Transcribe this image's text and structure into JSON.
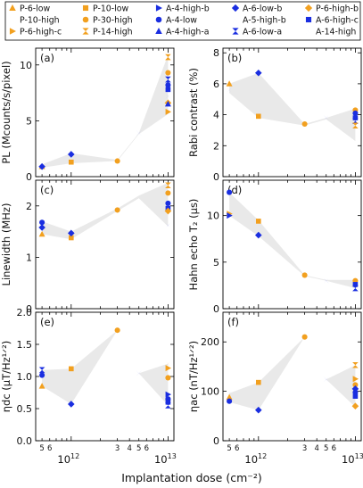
{
  "legend": [
    {
      "label": "P-6-low",
      "color": "#f2a01f",
      "marker": "tri-up"
    },
    {
      "label": "P-10-low",
      "color": "#f2a01f",
      "marker": "square"
    },
    {
      "label": "A-4-high-b",
      "color": "#1a2ee0",
      "marker": "tri-right"
    },
    {
      "label": "A-6-low-b",
      "color": "#1a2ee0",
      "marker": "diamond"
    },
    {
      "label": "P-6-high-b",
      "color": "#f2a01f",
      "marker": "diamond"
    },
    {
      "label": "P-10-high",
      "color": "#f2a01f",
      "marker": "bowtie"
    },
    {
      "label": "P-30-high",
      "color": "#f2a01f",
      "marker": "circle"
    },
    {
      "label": "A-4-low",
      "color": "#1a2ee0",
      "marker": "circle"
    },
    {
      "label": "A-5-high-b",
      "color": "#1a2ee0",
      "marker": "bowtie"
    },
    {
      "label": "A-6-high-c",
      "color": "#1a2ee0",
      "marker": "square"
    },
    {
      "label": "P-6-high-c",
      "color": "#f2a01f",
      "marker": "tri-right"
    },
    {
      "label": "P-14-high",
      "color": "#f2a01f",
      "marker": "hourglass"
    },
    {
      "label": "A-4-high-a",
      "color": "#1a2ee0",
      "marker": "tri-up"
    },
    {
      "label": "A-6-low-a",
      "color": "#1a2ee0",
      "marker": "hourglass"
    },
    {
      "label": "A-14-high",
      "color": "#1a2ee0",
      "marker": "bowtie"
    }
  ],
  "xlabel": "Implantation dose (cm⁻²)",
  "chart_data": [
    {
      "type": "scatter",
      "panel": "(a)",
      "ylabel": "PL (Mcounts/s/pixel)",
      "xscale": "log",
      "xlim": [
        430000000000.0,
        11500000000000.0
      ],
      "ylim": [
        0,
        11.5
      ],
      "yticks": [
        0,
        5,
        10
      ],
      "band": {
        "x": [
          500000000000.0,
          1000000000000.0,
          3000000000000.0,
          5000000000000.0,
          10000000000000.0
        ],
        "lower": [
          0.8,
          1.2,
          1.4,
          3.8,
          5.6
        ],
        "upper": [
          1.1,
          2.1,
          1.5,
          3.9,
          10.9
        ]
      },
      "points": [
        {
          "series": "P-6-low",
          "x": 500000000000.0,
          "y": 0.9
        },
        {
          "series": "A-6-low-b",
          "x": 500000000000.0,
          "y": 0.9
        },
        {
          "series": "P-10-low",
          "x": 1000000000000.0,
          "y": 1.3
        },
        {
          "series": "A-6-low-b",
          "x": 1000000000000.0,
          "y": 2.0
        },
        {
          "series": "P-30-high",
          "x": 3000000000000.0,
          "y": 1.4
        },
        {
          "series": "A-5-high-b",
          "x": 5000000000000.0,
          "y": 3.9
        },
        {
          "series": "P-14-high",
          "x": 10000000000000.0,
          "y": 10.7
        },
        {
          "series": "P-30-high",
          "x": 10000000000000.0,
          "y": 9.3
        },
        {
          "series": "A-6-low-a",
          "x": 10000000000000.0,
          "y": 8.7
        },
        {
          "series": "A-4-low",
          "x": 10000000000000.0,
          "y": 8.2
        },
        {
          "series": "A-6-high-c",
          "x": 10000000000000.0,
          "y": 7.8
        },
        {
          "series": "A-14-high",
          "x": 10000000000000.0,
          "y": 7.2
        },
        {
          "series": "P-6-high-b",
          "x": 10000000000000.0,
          "y": 6.6
        },
        {
          "series": "A-4-high-a",
          "x": 10000000000000.0,
          "y": 6.5
        },
        {
          "series": "P-6-high-c",
          "x": 10000000000000.0,
          "y": 5.8
        }
      ]
    },
    {
      "type": "scatter",
      "panel": "(b)",
      "ylabel": "Rabi contrast (%)",
      "xscale": "log",
      "xlim": [
        430000000000.0,
        11500000000000.0
      ],
      "ylim": [
        0,
        8.3
      ],
      "yticks": [
        0,
        2,
        4,
        6,
        8
      ],
      "band": {
        "x": [
          500000000000.0,
          1000000000000.0,
          3000000000000.0,
          5000000000000.0,
          10000000000000.0
        ],
        "lower": [
          5.4,
          3.8,
          3.3,
          3.7,
          2.3
        ],
        "upper": [
          6.0,
          6.7,
          3.4,
          3.8,
          4.4
        ]
      },
      "points": [
        {
          "series": "P-6-low",
          "x": 500000000000.0,
          "y": 6.0
        },
        {
          "series": "A-14-high",
          "x": 500000000000.0,
          "y": 5.6
        },
        {
          "series": "P-10-low",
          "x": 1000000000000.0,
          "y": 3.9
        },
        {
          "series": "A-6-low-b",
          "x": 1000000000000.0,
          "y": 6.7
        },
        {
          "series": "P-30-high",
          "x": 3000000000000.0,
          "y": 3.4
        },
        {
          "series": "A-5-high-b",
          "x": 5000000000000.0,
          "y": 3.8
        },
        {
          "series": "P-30-high",
          "x": 10000000000000.0,
          "y": 4.3
        },
        {
          "series": "A-4-low",
          "x": 10000000000000.0,
          "y": 4.1
        },
        {
          "series": "A-6-high-c",
          "x": 10000000000000.0,
          "y": 3.8
        },
        {
          "series": "A-6-low-a",
          "x": 10000000000000.0,
          "y": 3.6
        },
        {
          "series": "P-14-high",
          "x": 10000000000000.0,
          "y": 3.3
        },
        {
          "series": "P-10-high",
          "x": 10000000000000.0,
          "y": 2.5
        }
      ]
    },
    {
      "type": "scatter",
      "panel": "(c)",
      "ylabel": "Linewidth (MHz)",
      "xscale": "log",
      "xlim": [
        430000000000.0,
        11500000000000.0
      ],
      "ylim": [
        0,
        2.5
      ],
      "yticks": [
        0,
        1,
        2
      ],
      "band": {
        "x": [
          500000000000.0,
          1000000000000.0,
          3000000000000.0,
          5000000000000.0,
          10000000000000.0
        ],
        "lower": [
          1.45,
          1.35,
          1.9,
          2.15,
          1.6
        ],
        "upper": [
          1.7,
          1.5,
          1.95,
          2.2,
          2.45
        ]
      },
      "points": [
        {
          "series": "P-6-low",
          "x": 500000000000.0,
          "y": 1.45
        },
        {
          "series": "A-4-low",
          "x": 500000000000.0,
          "y": 1.68
        },
        {
          "series": "A-6-low-b",
          "x": 500000000000.0,
          "y": 1.58
        },
        {
          "series": "P-10-low",
          "x": 1000000000000.0,
          "y": 1.38
        },
        {
          "series": "A-6-low-b",
          "x": 1000000000000.0,
          "y": 1.47
        },
        {
          "series": "P-30-high",
          "x": 3000000000000.0,
          "y": 1.92
        },
        {
          "series": "A-5-high-b",
          "x": 5000000000000.0,
          "y": 2.17
        },
        {
          "series": "P-14-high",
          "x": 10000000000000.0,
          "y": 2.4
        },
        {
          "series": "P-30-high",
          "x": 10000000000000.0,
          "y": 2.25
        },
        {
          "series": "A-4-low",
          "x": 10000000000000.0,
          "y": 2.05
        },
        {
          "series": "A-6-high-c",
          "x": 10000000000000.0,
          "y": 1.95
        },
        {
          "series": "P-6-high-b",
          "x": 10000000000000.0,
          "y": 1.9
        },
        {
          "series": "A-14-high",
          "x": 10000000000000.0,
          "y": 1.62
        }
      ]
    },
    {
      "type": "scatter",
      "panel": "(d)",
      "ylabel": "Hahn echo T₂ (μs)",
      "xscale": "log",
      "xlim": [
        430000000000.0,
        11500000000000.0
      ],
      "ylim": [
        0,
        13.8
      ],
      "yticks": [
        0,
        5,
        10
      ],
      "band": {
        "x": [
          500000000000.0,
          1000000000000.0,
          3000000000000.0,
          5000000000000.0,
          10000000000000.0
        ],
        "lower": [
          10.0,
          7.8,
          3.5,
          3.0,
          2.2
        ],
        "upper": [
          12.5,
          9.5,
          3.6,
          3.1,
          3.1
        ]
      },
      "points": [
        {
          "series": "A-4-low",
          "x": 500000000000.0,
          "y": 12.5
        },
        {
          "series": "P-6-high-c",
          "x": 500000000000.0,
          "y": 10.2
        },
        {
          "series": "A-4-high-b",
          "x": 500000000000.0,
          "y": 10.0
        },
        {
          "series": "P-10-low",
          "x": 1000000000000.0,
          "y": 9.4
        },
        {
          "series": "A-6-low-b",
          "x": 1000000000000.0,
          "y": 7.9
        },
        {
          "series": "P-30-high",
          "x": 3000000000000.0,
          "y": 3.6
        },
        {
          "series": "A-5-high-b",
          "x": 5000000000000.0,
          "y": 3.0
        },
        {
          "series": "P-30-high",
          "x": 10000000000000.0,
          "y": 3.0
        },
        {
          "series": "P-14-high",
          "x": 10000000000000.0,
          "y": 2.7
        },
        {
          "series": "A-6-high-c",
          "x": 10000000000000.0,
          "y": 2.6
        },
        {
          "series": "A-14-high",
          "x": 10000000000000.0,
          "y": 2.4
        },
        {
          "series": "A-6-low-a",
          "x": 10000000000000.0,
          "y": 2.2
        }
      ]
    },
    {
      "type": "scatter",
      "panel": "(e)",
      "ylabel": "ηdc (μT/Hz¹ᐟ²)",
      "xscale": "log",
      "xlim": [
        430000000000.0,
        11500000000000.0
      ],
      "ylim": [
        0,
        2.0
      ],
      "yticks": [
        0,
        0.5,
        1.0,
        1.5,
        2.0
      ],
      "yticklabels": [
        "0.0",
        "0.5",
        "1.0",
        "1.5",
        "2.0"
      ],
      "band": {
        "x": [
          500000000000.0,
          1000000000000.0,
          3000000000000.0,
          5000000000000.0,
          10000000000000.0
        ],
        "lower": [
          0.85,
          0.57,
          1.72,
          1.05,
          0.55
        ],
        "upper": [
          1.1,
          1.12,
          1.72,
          1.05,
          1.2
        ]
      },
      "points": [
        {
          "series": "P-6-low",
          "x": 500000000000.0,
          "y": 0.85
        },
        {
          "series": "A-4-low",
          "x": 500000000000.0,
          "y": 1.02
        },
        {
          "series": "A-6-low-a",
          "x": 500000000000.0,
          "y": 1.1
        },
        {
          "series": "P-10-low",
          "x": 1000000000000.0,
          "y": 1.12
        },
        {
          "series": "A-6-low-b",
          "x": 1000000000000.0,
          "y": 0.57
        },
        {
          "series": "P-30-high",
          "x": 3000000000000.0,
          "y": 1.72
        },
        {
          "series": "A-5-high-b",
          "x": 5000000000000.0,
          "y": 1.05
        },
        {
          "series": "P-10-high",
          "x": 10000000000000.0,
          "y": 1.2
        },
        {
          "series": "P-6-high-c",
          "x": 10000000000000.0,
          "y": 1.13
        },
        {
          "series": "P-30-high",
          "x": 10000000000000.0,
          "y": 0.98
        },
        {
          "series": "A-4-high-b",
          "x": 10000000000000.0,
          "y": 0.72
        },
        {
          "series": "A-4-low",
          "x": 10000000000000.0,
          "y": 0.65
        },
        {
          "series": "A-6-high-c",
          "x": 10000000000000.0,
          "y": 0.6
        },
        {
          "series": "A-6-low-a",
          "x": 10000000000000.0,
          "y": 0.55
        }
      ]
    },
    {
      "type": "scatter",
      "panel": "(f)",
      "ylabel": "ηac (nT/Hz¹ᐟ²)",
      "xscale": "log",
      "xlim": [
        430000000000.0,
        11500000000000.0
      ],
      "ylim": [
        0,
        260
      ],
      "yticks": [
        0,
        100,
        200
      ],
      "band": {
        "x": [
          500000000000.0,
          1000000000000.0,
          3000000000000.0,
          5000000000000.0,
          10000000000000.0
        ],
        "lower": [
          78,
          62,
          210,
          124,
          68
        ],
        "upper": [
          96,
          118,
          210,
          124,
          153
        ]
      },
      "points": [
        {
          "series": "P-6-low",
          "x": 500000000000.0,
          "y": 88
        },
        {
          "series": "A-4-low",
          "x": 500000000000.0,
          "y": 80
        },
        {
          "series": "A-5-high-b",
          "x": 500000000000.0,
          "y": 96
        },
        {
          "series": "P-10-low",
          "x": 1000000000000.0,
          "y": 118
        },
        {
          "series": "A-6-low-b",
          "x": 1000000000000.0,
          "y": 62
        },
        {
          "series": "P-30-high",
          "x": 3000000000000.0,
          "y": 210
        },
        {
          "series": "A-5-high-b",
          "x": 5000000000000.0,
          "y": 124
        },
        {
          "series": "P-14-high",
          "x": 10000000000000.0,
          "y": 153
        },
        {
          "series": "P-6-high-c",
          "x": 10000000000000.0,
          "y": 125
        },
        {
          "series": "P-30-high",
          "x": 10000000000000.0,
          "y": 113
        },
        {
          "series": "A-6-low-b",
          "x": 10000000000000.0,
          "y": 105
        },
        {
          "series": "A-4-low",
          "x": 10000000000000.0,
          "y": 98
        },
        {
          "series": "A-6-high-c",
          "x": 10000000000000.0,
          "y": 90
        },
        {
          "series": "P-6-high-b",
          "x": 10000000000000.0,
          "y": 70
        }
      ]
    }
  ],
  "xticks_major": [
    {
      "value": 1000000000000.0,
      "base": "10",
      "exp": "12"
    },
    {
      "value": 10000000000000.0,
      "base": "10",
      "exp": "13"
    }
  ],
  "xticks_minor_labels": [
    {
      "value": 500000000000.0,
      "label": "5"
    },
    {
      "value": 600000000000.0,
      "label": "6"
    },
    {
      "value": 3000000000000.0,
      "label": "3"
    },
    {
      "value": 4000000000000.0,
      "label": "4"
    },
    {
      "value": 5000000000000.0,
      "label": "5"
    },
    {
      "value": 6000000000000.0,
      "label": "6"
    }
  ]
}
